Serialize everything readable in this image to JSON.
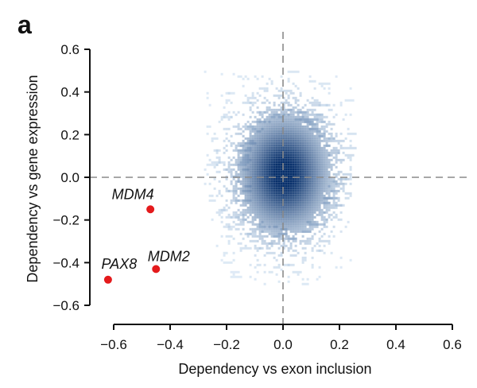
{
  "panel_label": "a",
  "chart_data": {
    "type": "scatter",
    "xlabel": "Dependency vs exon inclusion",
    "ylabel": "Dependency vs gene expression",
    "xlim": [
      -0.6,
      0.6
    ],
    "ylim": [
      -0.6,
      0.6
    ],
    "xticks": [
      "-0.6",
      "-0.4",
      "-0.2",
      "0.0",
      "0.2",
      "0.4",
      "0.6"
    ],
    "yticks": [
      "-0.6",
      "-0.4",
      "-0.2",
      "0.0",
      "0.2",
      "0.4",
      "0.6"
    ],
    "reference_lines": {
      "x": 0,
      "y": 0,
      "style": "dashed"
    },
    "grid": false,
    "density_cloud": {
      "color_low": "#c6dbef",
      "color_high": "#08306b",
      "center": [
        0.0,
        0.02
      ],
      "x_extent": [
        -0.28,
        0.24
      ],
      "y_extent": [
        -0.5,
        0.5
      ]
    },
    "highlighted_points": [
      {
        "label": "MDM4",
        "x": -0.47,
        "y": -0.15
      },
      {
        "label": "MDM2",
        "x": -0.45,
        "y": -0.43
      },
      {
        "label": "PAX8",
        "x": -0.62,
        "y": -0.48
      }
    ],
    "highlight_color": "#e41a1c"
  }
}
